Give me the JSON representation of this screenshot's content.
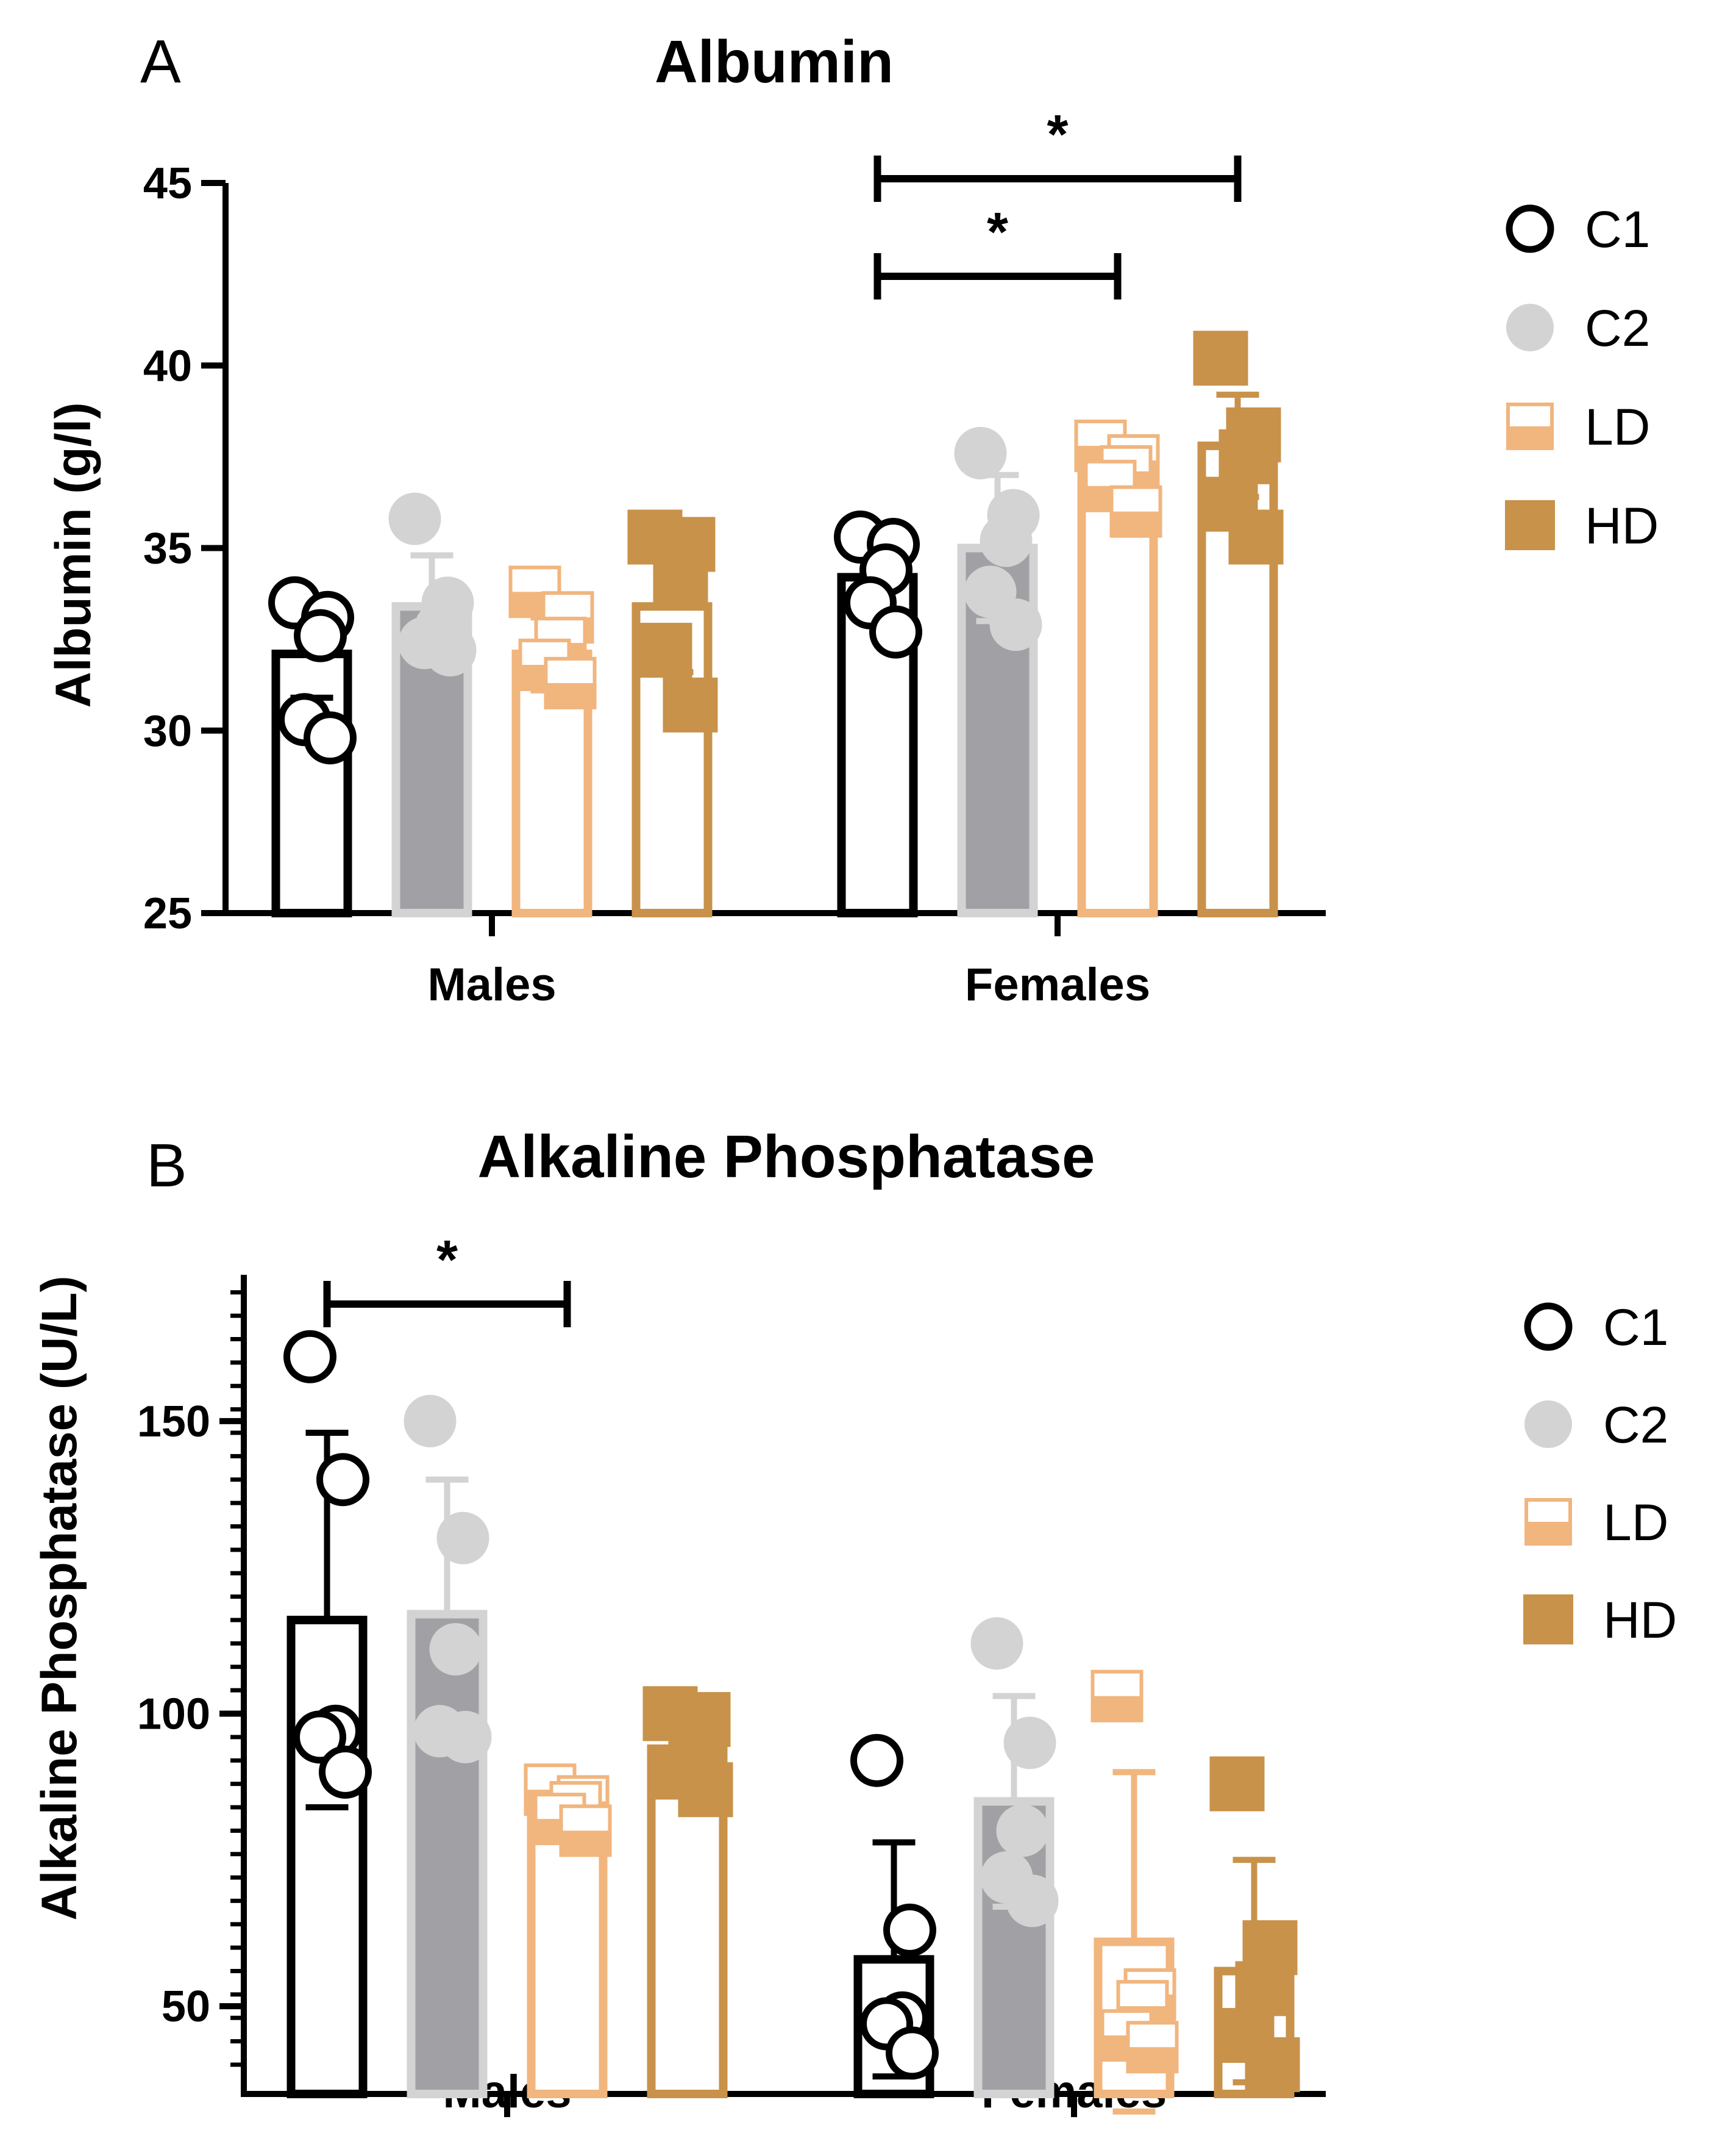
{
  "colors": {
    "C1": "#000000",
    "C2": "#d3d3d3",
    "C2_bar": "#a1a1a5",
    "LD": "#f1b57e",
    "HD": "#c8924a"
  },
  "chart_data": [
    {
      "panel_letter": "A",
      "type": "bar",
      "title": "Albumin",
      "xlabel": "",
      "ylabel": "Albumin (g/l)",
      "ylim": [
        25,
        45
      ],
      "yticks": [
        "25",
        "30",
        "35",
        "40",
        "45"
      ],
      "categories": [
        "Males",
        "Females"
      ],
      "legend_position": "right",
      "series": [
        {
          "name": "C1",
          "values": [
            32.1,
            34.2
          ],
          "error": [
            1.2,
            1.2
          ],
          "points": [
            [
              33.5,
              33.1,
              32.6,
              30.3,
              29.8
            ],
            [
              35.3,
              35.1,
              34.4,
              33.5,
              32.7
            ]
          ]
        },
        {
          "name": "C2",
          "values": [
            33.4,
            35.0
          ],
          "error": [
            1.4,
            2.0
          ],
          "points": [
            [
              35.8,
              33.5,
              32.8,
              32.4,
              32.2
            ],
            [
              37.6,
              35.9,
              35.2,
              33.8,
              32.9
            ]
          ]
        },
        {
          "name": "LD",
          "values": [
            32.1,
            37.0
          ],
          "error": [
            1.0,
            0.8
          ],
          "points": [
            [
              33.8,
              33.1,
              32.4,
              31.8,
              31.3
            ],
            [
              37.8,
              37.4,
              37.1,
              36.7,
              36.0
            ]
          ]
        },
        {
          "name": "HD",
          "values": [
            33.4,
            37.8
          ],
          "error": [
            1.8,
            1.4
          ],
          "points": [
            [
              35.3,
              35.1,
              34.2,
              32.2,
              30.7
            ],
            [
              40.2,
              38.1,
              37.5,
              36.2,
              35.3
            ]
          ]
        }
      ],
      "significance": [
        {
          "group": "Females",
          "from": "C1",
          "to": "LD",
          "label": "*"
        },
        {
          "group": "Females",
          "from": "C1",
          "to": "HD",
          "label": "*"
        }
      ]
    },
    {
      "panel_letter": "B",
      "type": "bar",
      "title": "Alkaline Phosphatase",
      "xlabel": "",
      "ylabel": "Alkaline Phosphatase (U/L)",
      "ylim": [
        35,
        175
      ],
      "yticks": [
        "50",
        "100",
        "150"
      ],
      "categories": [
        "Males",
        "Females"
      ],
      "legend_position": "right",
      "series": [
        {
          "name": "C1",
          "values": [
            116,
            58
          ],
          "error": [
            32,
            20
          ],
          "points": [
            [
              161,
              140,
              97,
              96,
              90
            ],
            [
              92,
              63,
              48,
              47,
              42
            ]
          ]
        },
        {
          "name": "C2",
          "values": [
            117,
            85
          ],
          "error": [
            23,
            18
          ],
          "points": [
            [
              150,
              130,
              111,
              97,
              96
            ],
            [
              112,
              95,
              80,
              72,
              68
            ]
          ]
        },
        {
          "name": "LD",
          "values": [
            84,
            61
          ],
          "error": [
            3,
            29
          ],
          "points": [
            [
              87,
              85,
              84,
              82,
              80
            ],
            [
              103,
              52,
              50,
              45,
              43
            ]
          ]
        },
        {
          "name": "HD",
          "values": [
            94,
            56
          ],
          "error": [
            6,
            19
          ],
          "points": [
            [
              100,
              99,
              95,
              90,
              87
            ],
            [
              88,
              60,
              53,
              45,
              40
            ]
          ]
        }
      ],
      "significance": [
        {
          "group": "Males",
          "from": "C1",
          "to": "LD",
          "label": "*"
        }
      ]
    }
  ]
}
